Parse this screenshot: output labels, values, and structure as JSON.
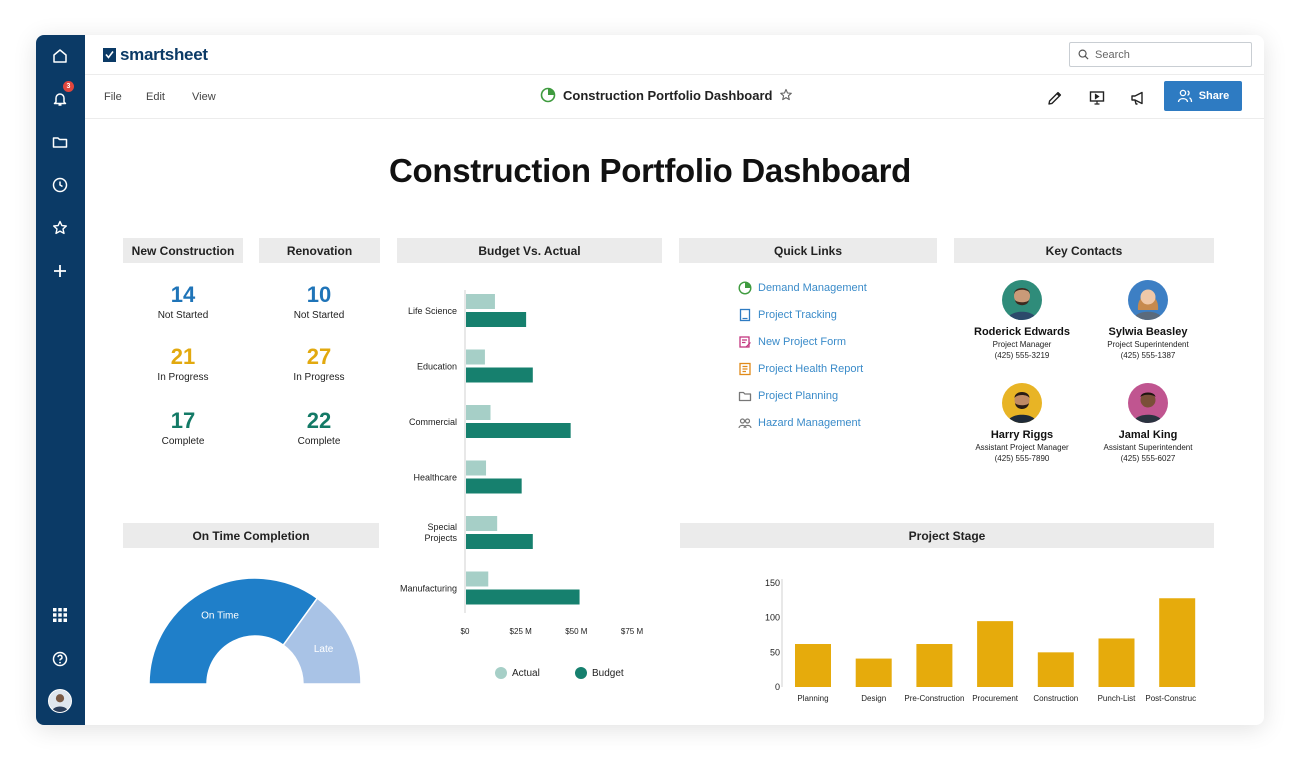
{
  "app": {
    "logo_text": "smartsheet",
    "notification_count": "3",
    "search_placeholder": "Search",
    "menus": [
      "File",
      "Edit",
      "View"
    ],
    "sheet_title": "Construction Portfolio Dashboard",
    "share_label": "Share",
    "accent": "#2e7bc2",
    "rail_color": "#0b3a66"
  },
  "rail_icons": [
    "home-icon",
    "bell-icon",
    "folder-icon",
    "clock-icon",
    "star-icon",
    "plus-icon",
    "apps-grid-icon",
    "help-icon"
  ],
  "dashboard": {
    "title": "Construction Portfolio Dashboard",
    "new_construction": {
      "heading": "New Construction",
      "stats": [
        {
          "value": "14",
          "label": "Not Started",
          "color": "#1f74b8"
        },
        {
          "value": "21",
          "label": "In Progress",
          "color": "#e2a90f"
        },
        {
          "value": "17",
          "label": "Complete",
          "color": "#137a66"
        }
      ]
    },
    "renovation": {
      "heading": "Renovation",
      "stats": [
        {
          "value": "10",
          "label": "Not Started",
          "color": "#1f74b8"
        },
        {
          "value": "27",
          "label": "In Progress",
          "color": "#e2a90f"
        },
        {
          "value": "22",
          "label": "Complete",
          "color": "#137a66"
        }
      ]
    },
    "quick_links": {
      "heading": "Quick Links",
      "items": [
        {
          "label": "Demand Management",
          "icon": "pie-chart-icon",
          "color": "#3f9b3f"
        },
        {
          "label": "Project Tracking",
          "icon": "sheet-icon",
          "color": "#2e7bc2"
        },
        {
          "label": "New Project Form",
          "icon": "form-icon",
          "color": "#c2357f"
        },
        {
          "label": "Project Health Report",
          "icon": "report-icon",
          "color": "#e08a1a"
        },
        {
          "label": "Project Planning",
          "icon": "folder-icon",
          "color": "#777777"
        },
        {
          "label": "Hazard Management",
          "icon": "people-icon",
          "color": "#777777"
        }
      ]
    },
    "key_contacts": {
      "heading": "Key Contacts",
      "people": [
        {
          "name": "Roderick Edwards",
          "role": "Project Manager",
          "phone": "(425) 555-3219",
          "bg": "#2f8c7a"
        },
        {
          "name": "Sylwia Beasley",
          "role": "Project Superintendent",
          "phone": "(425) 555-1387",
          "bg": "#3d7fc4"
        },
        {
          "name": "Harry Riggs",
          "role": "Assistant Project Manager",
          "phone": "(425) 555-7890",
          "bg": "#e8b425"
        },
        {
          "name": "Jamal King",
          "role": "Assistant Superintendent",
          "phone": "(425) 555-6027",
          "bg": "#c05590"
        }
      ]
    },
    "budget_heading": "Budget Vs. Actual",
    "on_time_heading": "On Time Completion",
    "stage_heading": "Project Stage"
  },
  "chart_data": [
    {
      "type": "bar",
      "orientation": "horizontal",
      "categories": [
        "Life Science",
        "Education",
        "Commercial",
        "Healthcare",
        "Special Projects",
        "Manufacturing"
      ],
      "series": [
        {
          "name": "Actual",
          "values": [
            13,
            8.5,
            11,
            9,
            14,
            10
          ],
          "color": "#a6cfc7"
        },
        {
          "name": "Budget",
          "values": [
            27,
            30,
            47,
            25,
            30,
            51
          ],
          "color": "#16806e"
        }
      ],
      "x_ticks": [
        "$0",
        "$25 M",
        "$50 M",
        "$75 M"
      ],
      "xlim": [
        0,
        75
      ],
      "legend": "bottom"
    },
    {
      "type": "pie",
      "style": "semi-donut",
      "slices": [
        {
          "label": "On Time",
          "value": 70,
          "color": "#1f7fc9"
        },
        {
          "label": "Late",
          "value": 30,
          "color": "#a9c3e6"
        }
      ]
    },
    {
      "type": "bar",
      "categories": [
        "Planning",
        "Design",
        "Pre-Construction",
        "Procurement",
        "Construction",
        "Punch-List",
        "Post-Construction"
      ],
      "values": [
        62,
        41,
        62,
        95,
        50,
        70,
        128
      ],
      "y_ticks": [
        "0",
        "50",
        "100",
        "150"
      ],
      "ylim": [
        0,
        150
      ],
      "color": "#e6ab0c"
    }
  ]
}
